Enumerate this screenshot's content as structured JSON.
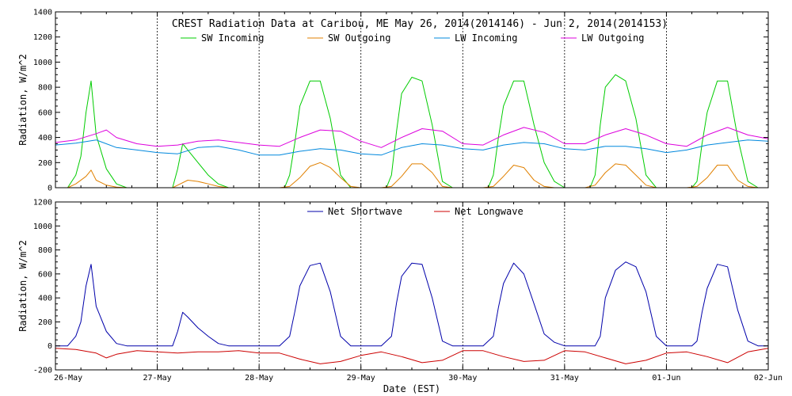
{
  "chart_data": [
    {
      "type": "line",
      "title": "CREST Radiation Data at Caribou, ME   May 26, 2014(2014146) - Jun  2, 2014(2014153)",
      "ylabel": "Radiation, W/m^2",
      "xlabel": "",
      "xlim": [
        0,
        7
      ],
      "ylim": [
        0,
        1400
      ],
      "yticks": [
        0,
        200,
        400,
        600,
        800,
        1000,
        1200,
        1400
      ],
      "grid": true,
      "legend": "top-center",
      "series": [
        {
          "name": "SW Incoming",
          "color": "#00cc00",
          "x": [
            0,
            0.12,
            0.2,
            0.25,
            0.3,
            0.35,
            0.4,
            0.5,
            0.6,
            0.7,
            0.75,
            0.8,
            0.9,
            1.0,
            1.1,
            1.15,
            1.2,
            1.25,
            1.3,
            1.4,
            1.5,
            1.6,
            1.7,
            1.8,
            1.9,
            2.0,
            2.1,
            2.2,
            2.25,
            2.3,
            2.35,
            2.4,
            2.5,
            2.6,
            2.7,
            2.8,
            2.9,
            3.0,
            3.1,
            3.2,
            3.25,
            3.3,
            3.35,
            3.4,
            3.5,
            3.6,
            3.7,
            3.8,
            3.9,
            4.0,
            4.1,
            4.2,
            4.25,
            4.3,
            4.35,
            4.4,
            4.5,
            4.6,
            4.7,
            4.8,
            4.9,
            5.0,
            5.1,
            5.2,
            5.25,
            5.3,
            5.35,
            5.4,
            5.5,
            5.6,
            5.7,
            5.8,
            5.9,
            6.0,
            6.1,
            6.2,
            6.25,
            6.3,
            6.35,
            6.4,
            6.5,
            6.6,
            6.7,
            6.8,
            6.9,
            7.0
          ],
          "values": [
            0,
            0,
            100,
            250,
            600,
            850,
            420,
            150,
            30,
            0,
            0,
            0,
            0,
            0,
            0,
            0,
            150,
            350,
            300,
            200,
            100,
            30,
            0,
            0,
            0,
            0,
            0,
            0,
            0,
            100,
            350,
            650,
            850,
            850,
            550,
            100,
            0,
            0,
            0,
            0,
            0,
            100,
            450,
            750,
            880,
            850,
            500,
            50,
            0,
            0,
            0,
            0,
            0,
            100,
            400,
            650,
            850,
            850,
            500,
            200,
            50,
            0,
            0,
            0,
            0,
            100,
            500,
            800,
            900,
            850,
            550,
            100,
            0,
            0,
            0,
            0,
            0,
            50,
            350,
            600,
            850,
            850,
            400,
            50,
            0,
            0
          ]
        },
        {
          "name": "SW Outgoing",
          "color": "#e08000",
          "x": [
            0,
            0.12,
            0.2,
            0.3,
            0.35,
            0.4,
            0.5,
            0.6,
            0.7,
            1.0,
            1.15,
            1.2,
            1.3,
            1.4,
            1.5,
            1.6,
            1.7,
            2.0,
            2.2,
            2.3,
            2.4,
            2.5,
            2.6,
            2.7,
            2.8,
            2.9,
            3.0,
            3.2,
            3.3,
            3.4,
            3.5,
            3.6,
            3.7,
            3.8,
            3.9,
            4.0,
            4.2,
            4.3,
            4.4,
            4.5,
            4.6,
            4.7,
            4.8,
            4.9,
            5.0,
            5.2,
            5.3,
            5.4,
            5.5,
            5.6,
            5.7,
            5.8,
            5.9,
            6.0,
            6.2,
            6.3,
            6.4,
            6.5,
            6.6,
            6.7,
            6.8,
            6.9,
            7.0
          ],
          "values": [
            0,
            0,
            30,
            90,
            140,
            60,
            20,
            5,
            0,
            0,
            0,
            20,
            60,
            50,
            30,
            10,
            0,
            0,
            0,
            10,
            80,
            170,
            200,
            160,
            80,
            10,
            0,
            0,
            10,
            90,
            190,
            190,
            120,
            10,
            0,
            0,
            0,
            10,
            90,
            180,
            160,
            60,
            10,
            0,
            0,
            0,
            20,
            120,
            190,
            180,
            100,
            20,
            0,
            0,
            0,
            10,
            80,
            180,
            180,
            60,
            10,
            0,
            0
          ]
        },
        {
          "name": "LW Incoming",
          "color": "#0088dd",
          "x": [
            0,
            0.2,
            0.4,
            0.6,
            0.8,
            1.0,
            1.2,
            1.4,
            1.6,
            1.8,
            2.0,
            2.2,
            2.4,
            2.6,
            2.8,
            3.0,
            3.2,
            3.4,
            3.6,
            3.8,
            4.0,
            4.2,
            4.4,
            4.6,
            4.8,
            5.0,
            5.2,
            5.4,
            5.6,
            5.8,
            6.0,
            6.2,
            6.4,
            6.6,
            6.8,
            7.0
          ],
          "values": [
            340,
            355,
            380,
            320,
            300,
            280,
            270,
            320,
            330,
            300,
            260,
            260,
            290,
            310,
            300,
            270,
            260,
            320,
            350,
            340,
            310,
            300,
            340,
            360,
            350,
            310,
            300,
            330,
            330,
            310,
            280,
            300,
            340,
            360,
            380,
            370
          ]
        },
        {
          "name": "LW Outgoing",
          "color": "#dd00dd",
          "x": [
            0,
            0.2,
            0.4,
            0.5,
            0.6,
            0.8,
            1.0,
            1.2,
            1.4,
            1.6,
            1.8,
            2.0,
            2.2,
            2.4,
            2.6,
            2.8,
            3.0,
            3.2,
            3.4,
            3.6,
            3.8,
            4.0,
            4.2,
            4.4,
            4.6,
            4.8,
            5.0,
            5.2,
            5.4,
            5.6,
            5.8,
            6.0,
            6.2,
            6.4,
            6.6,
            6.8,
            7.0
          ],
          "values": [
            360,
            380,
            430,
            460,
            400,
            350,
            330,
            340,
            370,
            380,
            360,
            340,
            330,
            400,
            460,
            450,
            370,
            320,
            400,
            470,
            450,
            350,
            340,
            420,
            480,
            440,
            350,
            350,
            420,
            470,
            420,
            350,
            330,
            420,
            480,
            420,
            390
          ]
        }
      ]
    },
    {
      "type": "line",
      "title": "",
      "ylabel": "Radiation, W/m^2",
      "xlabel": "Date (EST)",
      "xlim": [
        0,
        7
      ],
      "ylim": [
        -200,
        1200
      ],
      "yticks": [
        -200,
        0,
        200,
        400,
        600,
        800,
        1000,
        1200
      ],
      "grid": true,
      "legend": "top-center",
      "series": [
        {
          "name": "Net Shortwave",
          "color": "#0000aa",
          "x": [
            0,
            0.12,
            0.2,
            0.25,
            0.3,
            0.35,
            0.4,
            0.5,
            0.6,
            0.7,
            1.0,
            1.15,
            1.2,
            1.25,
            1.3,
            1.4,
            1.5,
            1.6,
            1.7,
            2.0,
            2.2,
            2.3,
            2.35,
            2.4,
            2.5,
            2.6,
            2.7,
            2.8,
            2.9,
            3.0,
            3.2,
            3.3,
            3.35,
            3.4,
            3.5,
            3.6,
            3.7,
            3.8,
            3.9,
            4.0,
            4.2,
            4.3,
            4.35,
            4.4,
            4.5,
            4.6,
            4.7,
            4.8,
            4.9,
            5.0,
            5.2,
            5.3,
            5.35,
            5.4,
            5.5,
            5.6,
            5.7,
            5.8,
            5.9,
            6.0,
            6.2,
            6.25,
            6.3,
            6.35,
            6.4,
            6.5,
            6.6,
            6.7,
            6.8,
            6.9,
            7.0
          ],
          "values": [
            0,
            0,
            80,
            200,
            500,
            680,
            330,
            120,
            20,
            0,
            0,
            0,
            120,
            280,
            240,
            150,
            80,
            20,
            0,
            0,
            0,
            80,
            280,
            500,
            670,
            690,
            450,
            80,
            0,
            0,
            0,
            80,
            360,
            580,
            690,
            680,
            400,
            40,
            0,
            0,
            0,
            80,
            320,
            520,
            690,
            600,
            350,
            100,
            30,
            0,
            0,
            0,
            80,
            400,
            630,
            700,
            660,
            450,
            80,
            0,
            0,
            0,
            40,
            280,
            480,
            680,
            660,
            300,
            40,
            0,
            0
          ]
        },
        {
          "name": "Net Longwave",
          "color": "#cc0000",
          "x": [
            0,
            0.2,
            0.4,
            0.5,
            0.6,
            0.8,
            1.0,
            1.2,
            1.4,
            1.6,
            1.8,
            2.0,
            2.2,
            2.4,
            2.6,
            2.8,
            3.0,
            3.2,
            3.4,
            3.6,
            3.8,
            4.0,
            4.2,
            4.4,
            4.6,
            4.8,
            5.0,
            5.2,
            5.4,
            5.6,
            5.8,
            6.0,
            6.2,
            6.4,
            6.6,
            6.8,
            7.0
          ],
          "values": [
            -20,
            -30,
            -60,
            -100,
            -70,
            -40,
            -50,
            -60,
            -50,
            -50,
            -40,
            -60,
            -60,
            -110,
            -150,
            -130,
            -80,
            -50,
            -90,
            -140,
            -120,
            -40,
            -40,
            -90,
            -130,
            -120,
            -40,
            -50,
            -100,
            -150,
            -120,
            -60,
            -50,
            -90,
            -140,
            -50,
            -20
          ]
        }
      ]
    }
  ],
  "x_axis": {
    "ticks": [
      0,
      1,
      2,
      3,
      4,
      5,
      6,
      7
    ],
    "labels": [
      "26-May",
      "27-May",
      "28-May",
      "29-May",
      "30-May",
      "31-May",
      "01-Jun",
      "02-Jun"
    ]
  }
}
